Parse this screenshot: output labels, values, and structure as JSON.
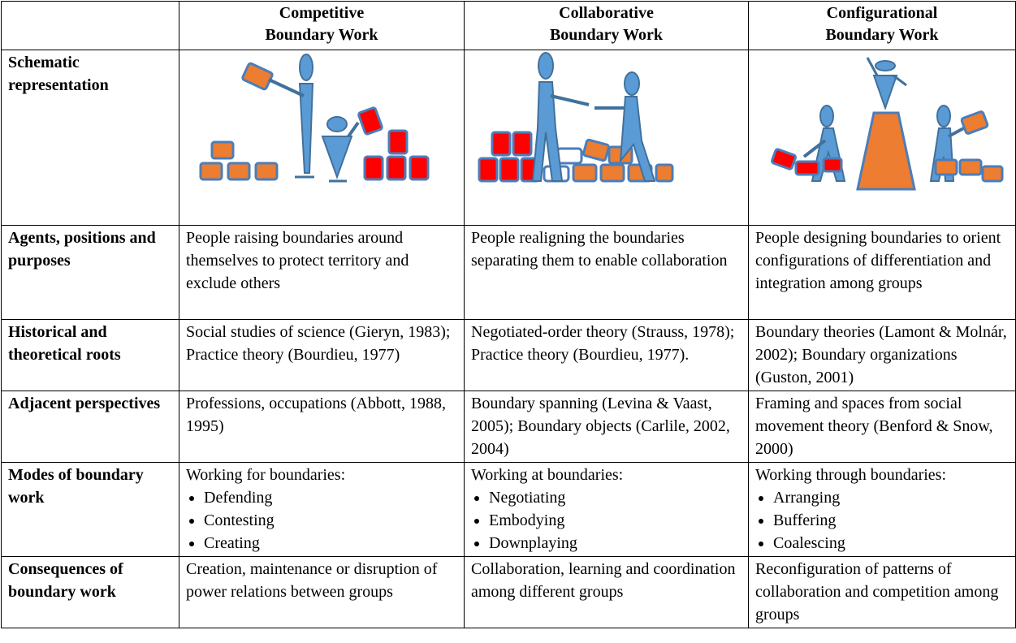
{
  "table": {
    "headers": [
      [
        "Competitive",
        "Boundary Work"
      ],
      [
        "Collaborative",
        "Boundary Work"
      ],
      [
        "Configurational",
        "Boundary Work"
      ]
    ],
    "schematic_label": "Schematic representation",
    "rows": [
      {
        "label": "Agents, positions and purposes",
        "cells": [
          "People raising boundaries around themselves to protect territory and exclude others",
          "People realigning the boundaries separating them to enable collaboration",
          "People designing boundaries to orient configurations of differentiation and integration among groups"
        ]
      },
      {
        "label": "Historical and theoretical roots",
        "cells": [
          "Social studies of science (Gieryn, 1983); Practice theory (Bourdieu, 1977)",
          "Negotiated-order theory (Strauss, 1978); Practice theory (Bourdieu, 1977).",
          "Boundary theories (Lamont & Molnár, 2002); Boundary organizations (Guston, 2001)"
        ]
      },
      {
        "label": "Adjacent perspectives",
        "cells": [
          "Professions, occupations (Abbott, 1988, 1995)",
          "Boundary spanning (Levina & Vaast, 2005); Boundary objects (Carlile, 2002, 2004)",
          "Framing and spaces from social movement theory (Benford & Snow, 2000)"
        ]
      },
      {
        "label": "Modes of boundary work",
        "cells": [
          {
            "intro": "Working for boundaries:",
            "items": [
              "Defending",
              "Contesting",
              "Creating"
            ]
          },
          {
            "intro": "Working at boundaries:",
            "items": [
              "Negotiating",
              "Embodying",
              "Downplaying"
            ]
          },
          {
            "intro": "Working through boundaries:",
            "items": [
              "Arranging",
              "Buffering",
              "Coalescing"
            ]
          }
        ]
      },
      {
        "label": "Consequences of boundary work",
        "cells": [
          "Creation, maintenance or disruption of power relations between groups",
          "Collaboration, learning and coordination among different groups",
          "Reconfiguration of patterns of collaboration and competition among groups"
        ]
      }
    ]
  }
}
